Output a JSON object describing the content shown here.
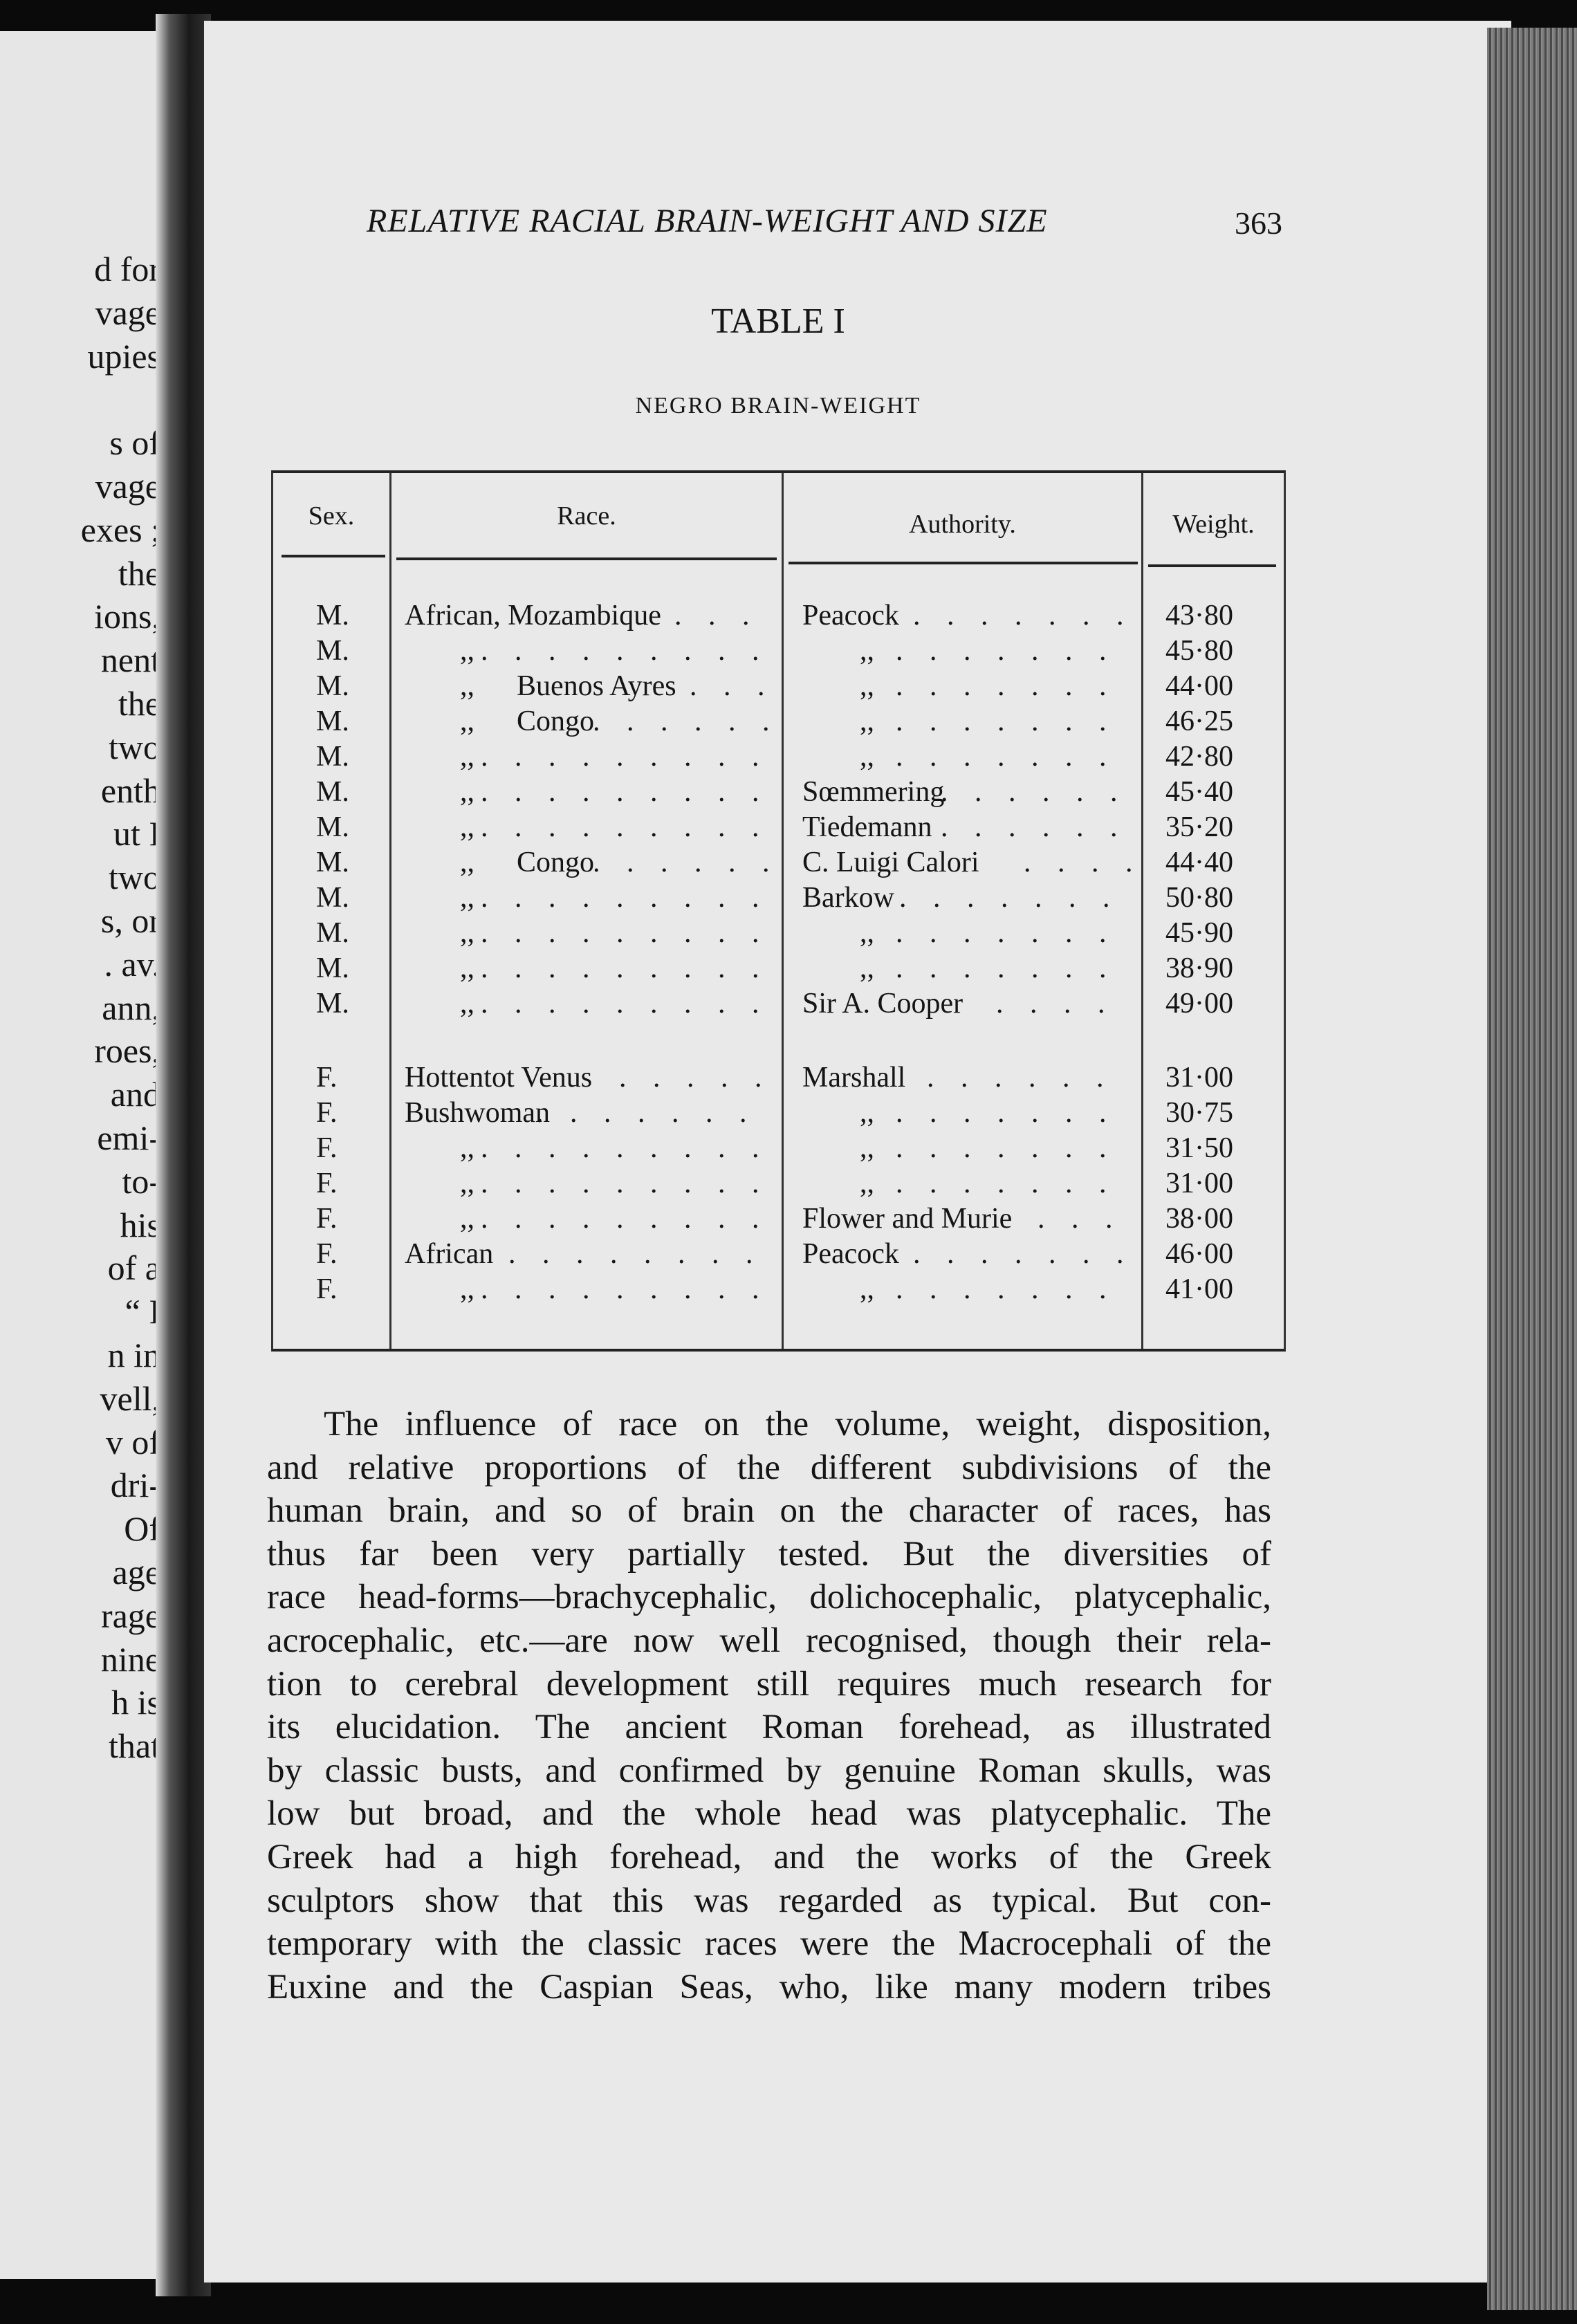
{
  "left_page": {
    "lines": [
      "d for",
      "vage",
      "upies",
      "",
      "s of",
      "vage",
      "exes ;",
      "the",
      "ions,",
      "nent",
      "the",
      "two",
      "enth",
      "ut I",
      "two",
      "s, or",
      ". av.",
      "ann,",
      "roes,",
      "and",
      "emi-",
      "to-",
      "his",
      "of a",
      "“ I",
      "n in",
      "vell,",
      "v of",
      "dri-",
      "Of",
      "age",
      "rage",
      "nine",
      "h is",
      "that"
    ]
  },
  "header": {
    "running_head": "RELATIVE RACIAL BRAIN-WEIGHT AND SIZE",
    "page_number": "363"
  },
  "table": {
    "title": "TABLE I",
    "subtitle": "NEGRO BRAIN-WEIGHT",
    "columns": [
      "Sex.",
      "Race.",
      "Authority.",
      "Weight."
    ],
    "male_rows": [
      {
        "sex": "M.",
        "race": "African, Mozambique",
        "race_ditto": "",
        "auth": "Peacock",
        "auth_ditto": "",
        "weight": "43·80"
      },
      {
        "sex": "M.",
        "race": "",
        "race_ditto": ",,",
        "auth": "",
        "auth_ditto": ",,",
        "weight": "45·80"
      },
      {
        "sex": "M.",
        "race": "Buenos Ayres",
        "race_ditto": ",,",
        "auth": "",
        "auth_ditto": ",,",
        "weight": "44·00"
      },
      {
        "sex": "M.",
        "race": "Congo",
        "race_ditto": ",,",
        "auth": "",
        "auth_ditto": ",,",
        "weight": "46·25"
      },
      {
        "sex": "M.",
        "race": "",
        "race_ditto": ",,",
        "auth": "",
        "auth_ditto": ",,",
        "weight": "42·80"
      },
      {
        "sex": "M.",
        "race": "",
        "race_ditto": ",,",
        "auth": "Sœmmering",
        "auth_ditto": "",
        "weight": "45·40"
      },
      {
        "sex": "M.",
        "race": "",
        "race_ditto": ",,",
        "auth": "Tiedemann",
        "auth_ditto": "",
        "weight": "35·20"
      },
      {
        "sex": "M.",
        "race": "Congo",
        "race_ditto": ",,",
        "auth": "C. Luigi Calori",
        "auth_ditto": "",
        "weight": "44·40"
      },
      {
        "sex": "M.",
        "race": "",
        "race_ditto": ",,",
        "auth": "Barkow",
        "auth_ditto": "",
        "weight": "50·80"
      },
      {
        "sex": "M.",
        "race": "",
        "race_ditto": ",,",
        "auth": "",
        "auth_ditto": ",,",
        "weight": "45·90"
      },
      {
        "sex": "M.",
        "race": "",
        "race_ditto": ",,",
        "auth": "",
        "auth_ditto": ",,",
        "weight": "38·90"
      },
      {
        "sex": "M.",
        "race": "",
        "race_ditto": ",,",
        "auth": "Sir A. Cooper",
        "auth_ditto": "",
        "weight": "49·00"
      }
    ],
    "female_rows": [
      {
        "sex": "F.",
        "race": "Hottentot Venus",
        "race_ditto": "",
        "auth": "Marshall",
        "auth_ditto": "",
        "weight": "31·00"
      },
      {
        "sex": "F.",
        "race": "Bushwoman",
        "race_ditto": "",
        "auth": "",
        "auth_ditto": ",,",
        "weight": "30·75"
      },
      {
        "sex": "F.",
        "race": "",
        "race_ditto": ",,",
        "auth": "",
        "auth_ditto": ",,",
        "weight": "31·50"
      },
      {
        "sex": "F.",
        "race": "",
        "race_ditto": ",,",
        "auth": "",
        "auth_ditto": ",,",
        "weight": "31·00"
      },
      {
        "sex": "F.",
        "race": "",
        "race_ditto": ",,",
        "auth": "Flower and Murie",
        "auth_ditto": "",
        "weight": "38·00"
      },
      {
        "sex": "F.",
        "race": "African",
        "race_ditto": "",
        "auth": "Peacock",
        "auth_ditto": "",
        "weight": "46·00"
      },
      {
        "sex": "F.",
        "race": "",
        "race_ditto": ",,",
        "auth": "",
        "auth_ditto": ",,",
        "weight": "41·00"
      }
    ]
  },
  "body": {
    "lines": [
      "The influence of race on the volume, weight, disposition,",
      "and relative proportions of the different subdivisions of the",
      "human brain, and so of brain on the character of races, has",
      "thus far been very partially tested.  But the diversities of",
      "race head-forms—brachycephalic, dolichocephalic, platycephalic,",
      "acrocephalic, etc.—are now well recognised, though their rela-",
      "tion to cerebral development still requires much research for",
      "its elucidation.  The ancient Roman forehead, as illustrated",
      "by classic busts, and confirmed by genuine Roman skulls, was",
      "low but broad, and the whole head was platycephalic.  The",
      "Greek had a high forehead, and the works of the Greek",
      "sculptors show that this was regarded as typical.  But con-",
      "temporary with the classic races were the Macrocephali of the",
      "Euxine and the Caspian Seas, who, like many modern tribes"
    ]
  }
}
